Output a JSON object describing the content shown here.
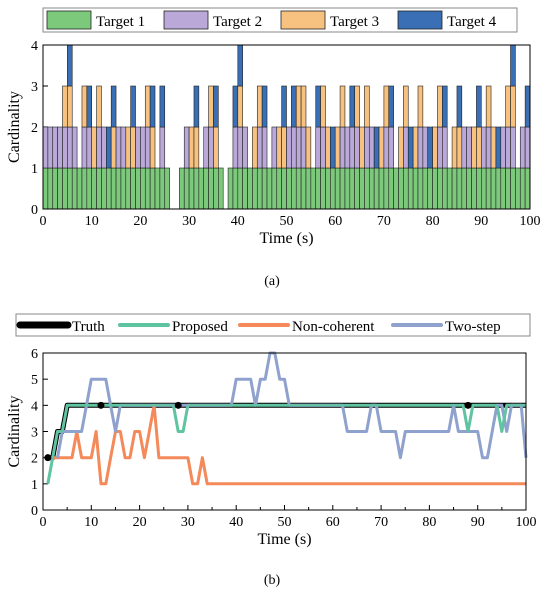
{
  "chart_data": [
    {
      "type": "bar",
      "stacked": true,
      "xlabel": "Time (s)",
      "ylabel": "Cardinality",
      "xlim": [
        0,
        100
      ],
      "ylim": [
        0,
        4
      ],
      "x_ticks": [
        "0",
        "10",
        "20",
        "30",
        "40",
        "50",
        "60",
        "70",
        "80",
        "90",
        "100"
      ],
      "y_ticks": [
        "0",
        "1",
        "2",
        "3",
        "4"
      ],
      "caption": "(a)",
      "legend_placement": "top",
      "series": [
        {
          "name": "Target 1",
          "color": "#7cc97c",
          "intervals": [
            [
              0,
              26
            ],
            [
              28,
              37
            ],
            [
              38,
              100
            ]
          ]
        },
        {
          "name": "Target 2",
          "color": "#b9a8d8",
          "intervals": [
            [
              0,
              7
            ],
            [
              8,
              10
            ],
            [
              11,
              13
            ],
            [
              15,
              17
            ],
            [
              19,
              22
            ],
            [
              24,
              25
            ],
            [
              29,
              30
            ],
            [
              33,
              35
            ],
            [
              39,
              42
            ],
            [
              44,
              46
            ],
            [
              47,
              48
            ],
            [
              50,
              54
            ],
            [
              56,
              58
            ],
            [
              61,
              65
            ],
            [
              66,
              68
            ],
            [
              70,
              72
            ],
            [
              74,
              75
            ],
            [
              77,
              79
            ],
            [
              81,
              83
            ],
            [
              86,
              88
            ],
            [
              90,
              92
            ],
            [
              94,
              97
            ],
            [
              98,
              100
            ]
          ]
        },
        {
          "name": "Target 3",
          "color": "#f7c17f",
          "intervals": [
            [
              4,
              6
            ],
            [
              8,
              9
            ],
            [
              10,
              12
            ],
            [
              14,
              15
            ],
            [
              17,
              19
            ],
            [
              21,
              23
            ],
            [
              30,
              32
            ],
            [
              34,
              36
            ],
            [
              40,
              41
            ],
            [
              43,
              45
            ],
            [
              48,
              50
            ],
            [
              52,
              55
            ],
            [
              57,
              59
            ],
            [
              60,
              62
            ],
            [
              64,
              67
            ],
            [
              69,
              71
            ],
            [
              73,
              75
            ],
            [
              76,
              78
            ],
            [
              80,
              82
            ],
            [
              84,
              86
            ],
            [
              88,
              90
            ],
            [
              91,
              93
            ],
            [
              95,
              97
            ]
          ]
        },
        {
          "name": "Target 4",
          "color": "#3a6fb5",
          "intervals": [
            [
              5,
              6
            ],
            [
              9,
              10
            ],
            [
              13,
              15
            ],
            [
              18,
              19
            ],
            [
              22,
              23
            ],
            [
              24,
              25
            ],
            [
              31,
              32
            ],
            [
              35,
              36
            ],
            [
              39,
              41
            ],
            [
              45,
              46
            ],
            [
              49,
              50
            ],
            [
              51,
              52
            ],
            [
              56,
              57
            ],
            [
              59,
              60
            ],
            [
              63,
              64
            ],
            [
              68,
              69
            ],
            [
              71,
              72
            ],
            [
              75,
              76
            ],
            [
              79,
              80
            ],
            [
              82,
              83
            ],
            [
              85,
              86
            ],
            [
              89,
              90
            ],
            [
              93,
              94
            ],
            [
              96,
              97
            ],
            [
              99,
              100
            ]
          ]
        }
      ]
    },
    {
      "type": "line",
      "xlabel": "Time (s)",
      "ylabel": "Cardinality",
      "xlim": [
        0,
        100
      ],
      "ylim": [
        0,
        6
      ],
      "x_ticks": [
        "0",
        "10",
        "20",
        "30",
        "40",
        "50",
        "60",
        "70",
        "80",
        "90",
        "100"
      ],
      "y_ticks": [
        "0",
        "1",
        "2",
        "3",
        "4",
        "5",
        "6"
      ],
      "caption": "(b)",
      "legend_placement": "top",
      "series": [
        {
          "name": "Truth",
          "color": "#000000",
          "points": [
            [
              1,
              2
            ],
            [
              2,
              2
            ],
            [
              3,
              3
            ],
            [
              4,
              3
            ],
            [
              5,
              4
            ],
            [
              100,
              4
            ]
          ],
          "markers": [
            [
              1,
              2
            ],
            [
              12,
              4
            ],
            [
              28,
              4
            ],
            [
              88,
              4
            ]
          ]
        },
        {
          "name": "Proposed",
          "color": "#5fc4a0",
          "points": [
            [
              1,
              1
            ],
            [
              2,
              2
            ],
            [
              3,
              3
            ],
            [
              4,
              3
            ],
            [
              5,
              4
            ],
            [
              27,
              4
            ],
            [
              28,
              3
            ],
            [
              29,
              3
            ],
            [
              30,
              4
            ],
            [
              87,
              4
            ],
            [
              88,
              3
            ],
            [
              89,
              4
            ],
            [
              94,
              4
            ],
            [
              95,
              3
            ],
            [
              96,
              4
            ],
            [
              100,
              4
            ]
          ]
        },
        {
          "name": "Non-coherent",
          "color": "#f4895a",
          "points": [
            [
              1,
              2
            ],
            [
              6,
              2
            ],
            [
              7,
              3
            ],
            [
              8,
              2
            ],
            [
              10,
              2
            ],
            [
              11,
              3
            ],
            [
              12,
              1
            ],
            [
              13,
              1
            ],
            [
              14,
              2
            ],
            [
              15,
              3
            ],
            [
              16,
              3
            ],
            [
              17,
              2
            ],
            [
              18,
              2
            ],
            [
              19,
              3
            ],
            [
              20,
              3
            ],
            [
              21,
              2
            ],
            [
              22,
              3
            ],
            [
              23,
              4
            ],
            [
              24,
              2
            ],
            [
              30,
              2
            ],
            [
              31,
              1
            ],
            [
              32,
              1
            ],
            [
              33,
              2
            ],
            [
              34,
              1
            ],
            [
              100,
              1
            ]
          ]
        },
        {
          "name": "Two-step",
          "color": "#8fa2cd",
          "points": [
            [
              3,
              2
            ],
            [
              4,
              3
            ],
            [
              8,
              3
            ],
            [
              9,
              4
            ],
            [
              10,
              5
            ],
            [
              13,
              5
            ],
            [
              14,
              4
            ],
            [
              15,
              3
            ],
            [
              16,
              4
            ],
            [
              39,
              4
            ],
            [
              40,
              5
            ],
            [
              43,
              5
            ],
            [
              44,
              4
            ],
            [
              45,
              5
            ],
            [
              46,
              5
            ],
            [
              47,
              6
            ],
            [
              48,
              6
            ],
            [
              49,
              5
            ],
            [
              50,
              5
            ],
            [
              51,
              4
            ],
            [
              62,
              4
            ],
            [
              63,
              3
            ],
            [
              67,
              3
            ],
            [
              68,
              4
            ],
            [
              69,
              4
            ],
            [
              70,
              3
            ],
            [
              73,
              3
            ],
            [
              74,
              2
            ],
            [
              75,
              3
            ],
            [
              84,
              3
            ],
            [
              85,
              4
            ],
            [
              86,
              3
            ],
            [
              90,
              3
            ],
            [
              91,
              2
            ],
            [
              92,
              2
            ],
            [
              93,
              3
            ],
            [
              94,
              4
            ],
            [
              95,
              4
            ],
            [
              96,
              3
            ],
            [
              97,
              4
            ],
            [
              99,
              4
            ],
            [
              100,
              2
            ]
          ]
        }
      ]
    }
  ]
}
